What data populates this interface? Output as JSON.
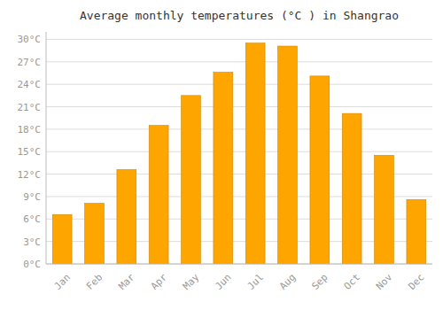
{
  "chart_data": {
    "type": "bar",
    "title": "Average monthly temperatures (°C ) in Shangrao",
    "categories": [
      "Jan",
      "Feb",
      "Mar",
      "Apr",
      "May",
      "Jun",
      "Jul",
      "Aug",
      "Sep",
      "Oct",
      "Nov",
      "Dec"
    ],
    "values": [
      6.6,
      8.1,
      12.6,
      18.5,
      22.5,
      25.6,
      29.5,
      29.1,
      25.1,
      20.1,
      14.5,
      8.6
    ],
    "color": "#FFA500",
    "ylim": [
      0,
      31
    ],
    "yticks": [
      {
        "value": 0,
        "label": "0°C"
      },
      {
        "value": 3,
        "label": "3°C"
      },
      {
        "value": 6,
        "label": "6°C"
      },
      {
        "value": 9,
        "label": "9°C"
      },
      {
        "value": 12,
        "label": "12°C"
      },
      {
        "value": 15,
        "label": "15°C"
      },
      {
        "value": 18,
        "label": "18°C"
      },
      {
        "value": 21,
        "label": "21°C"
      },
      {
        "value": 24,
        "label": "24°C"
      },
      {
        "value": 27,
        "label": "27°C"
      },
      {
        "value": 30,
        "label": "30°C"
      }
    ],
    "grid": true
  }
}
